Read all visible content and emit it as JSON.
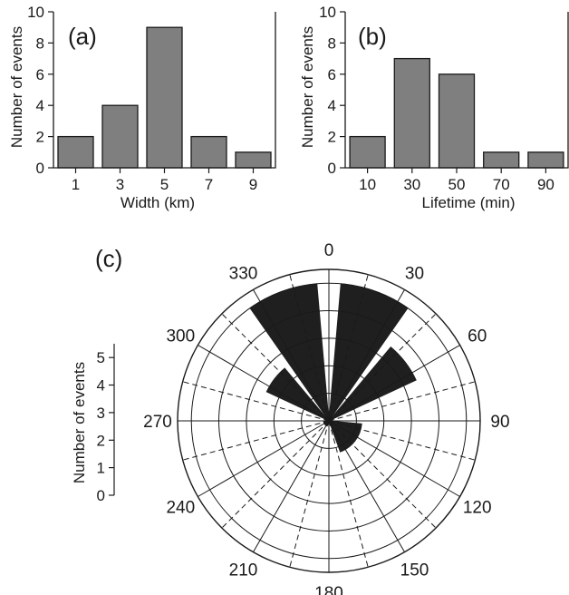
{
  "colors": {
    "bar_fill": "#7f7f7f",
    "bar_stroke": "#1a1a1a",
    "sector_fill": "#1f1f1f",
    "line": "#1a1a1a"
  },
  "chart_data": [
    {
      "type": "bar",
      "panel_label": "(a)",
      "categories": [
        "1",
        "3",
        "5",
        "7",
        "9"
      ],
      "values": [
        2,
        4,
        9,
        2,
        1
      ],
      "xlabel": "Width (km)",
      "ylabel": "Number of events",
      "ylim": [
        0,
        10
      ],
      "yticks": [
        0,
        2,
        4,
        6,
        8,
        10
      ],
      "grid": false
    },
    {
      "type": "bar",
      "panel_label": "(b)",
      "categories": [
        "10",
        "30",
        "50",
        "70",
        "90"
      ],
      "values": [
        2,
        7,
        6,
        1,
        1
      ],
      "xlabel": "Lifetime (min)",
      "ylabel": "Number of events",
      "ylim": [
        0,
        10
      ],
      "yticks": [
        0,
        2,
        4,
        6,
        8,
        10
      ],
      "grid": false
    },
    {
      "type": "rose",
      "panel_label": "(c)",
      "direction_labels": [
        "0",
        "30",
        "60",
        "90",
        "120",
        "150",
        "180",
        "210",
        "240",
        "270",
        "300",
        "330"
      ],
      "rlim": [
        0,
        5.5
      ],
      "ring_values": [
        1,
        2,
        3,
        4,
        5
      ],
      "scale_ticks": [
        "0",
        "1",
        "2",
        "3",
        "4",
        "5"
      ],
      "scale_label": "Number of events",
      "sectors": [
        {
          "from": 325,
          "to": 355,
          "value": 5
        },
        {
          "from": 5,
          "to": 35,
          "value": 5
        },
        {
          "from": 40,
          "to": 65,
          "value": 3.5
        },
        {
          "from": 295,
          "to": 320,
          "value": 2.5
        },
        {
          "from": 95,
          "to": 160,
          "value": 1.2
        },
        {
          "from": 200,
          "to": 265,
          "value": 0.2
        }
      ]
    }
  ]
}
